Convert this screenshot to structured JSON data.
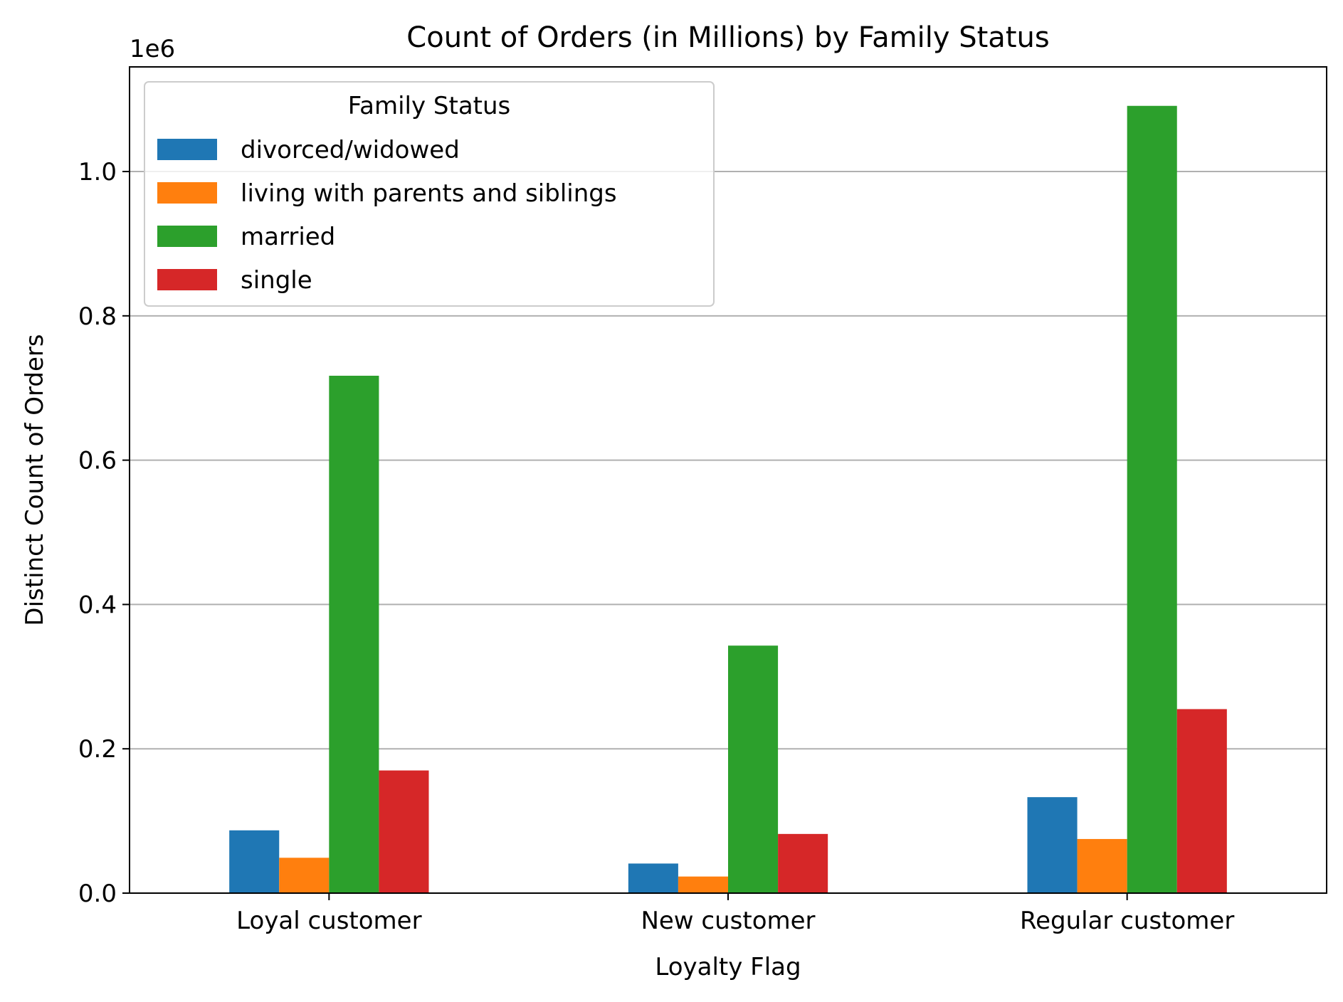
{
  "chart_data": {
    "type": "bar",
    "title": "Count of Orders (in Millions) by Family Status",
    "xlabel": "Loyalty Flag",
    "ylabel": "Distinct Count of Orders",
    "y_offset_label": "1e6",
    "categories": [
      "Loyal customer",
      "New customer",
      "Regular customer"
    ],
    "series": [
      {
        "name": "divorced/widowed",
        "color": "#1f77b4",
        "values": [
          87000,
          41000,
          133000
        ]
      },
      {
        "name": "living with parents and siblings",
        "color": "#ff7f0e",
        "values": [
          49000,
          23000,
          75000
        ]
      },
      {
        "name": "married",
        "color": "#2ca02c",
        "values": [
          717000,
          343000,
          1091000
        ]
      },
      {
        "name": "single",
        "color": "#d62728",
        "values": [
          170000,
          82000,
          255000
        ]
      }
    ],
    "ylim": [
      0,
      1145000
    ],
    "yticks": [
      0,
      200000,
      400000,
      600000,
      800000,
      1000000
    ],
    "ytick_labels": [
      "0.0",
      "0.2",
      "0.4",
      "0.6",
      "0.8",
      "1.0"
    ],
    "grid": "y",
    "legend": {
      "title": "Family Status",
      "position": "top-left"
    }
  }
}
